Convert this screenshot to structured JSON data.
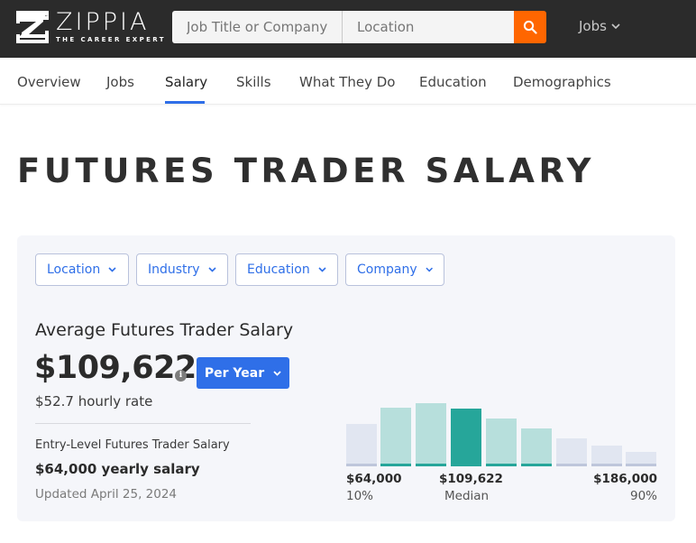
{
  "header": {
    "logo": {
      "word": "ZIPPIA",
      "tagline": "THE CAREER EXPERT"
    },
    "search": {
      "job_placeholder": "Job Title or Company",
      "location_placeholder": "Location",
      "search_icon": "search-icon"
    },
    "menu": {
      "label": "Jobs",
      "icon": "chevron-down-icon"
    },
    "colors": {
      "bar_bg": "#2b2b2b",
      "search_button": "#ff6600"
    }
  },
  "nav": {
    "tabs": [
      {
        "label": "Overview",
        "active": false
      },
      {
        "label": "Jobs",
        "active": false
      },
      {
        "label": "Salary",
        "active": true
      },
      {
        "label": "Skills",
        "active": false
      },
      {
        "label": "What They Do",
        "active": false
      },
      {
        "label": "Education",
        "active": false
      },
      {
        "label": "Demographics",
        "active": false
      }
    ],
    "active_color": "#2f6fe8"
  },
  "page": {
    "title": "FUTURES TRADER SALARY"
  },
  "salary_card": {
    "filters": [
      {
        "label": "Location"
      },
      {
        "label": "Industry"
      },
      {
        "label": "Education"
      },
      {
        "label": "Company"
      }
    ],
    "average_label": "Average Futures Trader Salary",
    "average_value": "$109,622",
    "info_icon": "i",
    "period_selector": {
      "label": "Per Year"
    },
    "hourly_rate": "$52.7 hourly rate",
    "entry_level_label": "Entry-Level Futures Trader Salary",
    "entry_level_value": "$64,000 yearly salary",
    "updated": "Updated April 25, 2024"
  },
  "chart_data": {
    "type": "bar",
    "title": "Futures Trader salary distribution",
    "categories": [
      "1",
      "2",
      "3",
      "4",
      "5",
      "6",
      "7",
      "8",
      "9"
    ],
    "values": [
      47,
      65,
      70,
      64,
      53,
      42,
      31,
      23,
      16
    ],
    "highlight": [
      false,
      true,
      true,
      true,
      true,
      true,
      false,
      false,
      false
    ],
    "median_index": 3,
    "colors": {
      "outer": "#e1e6f1",
      "inner": "#b7dfdc",
      "median": "#26a69a"
    },
    "labels": {
      "low": {
        "value": "$64,000",
        "sub": "10%"
      },
      "median": {
        "value": "$109,622",
        "sub": "Median"
      },
      "high": {
        "value": "$186,000",
        "sub": "90%"
      }
    },
    "xlabel": "",
    "ylabel": "",
    "grid": false,
    "legend": "none"
  }
}
